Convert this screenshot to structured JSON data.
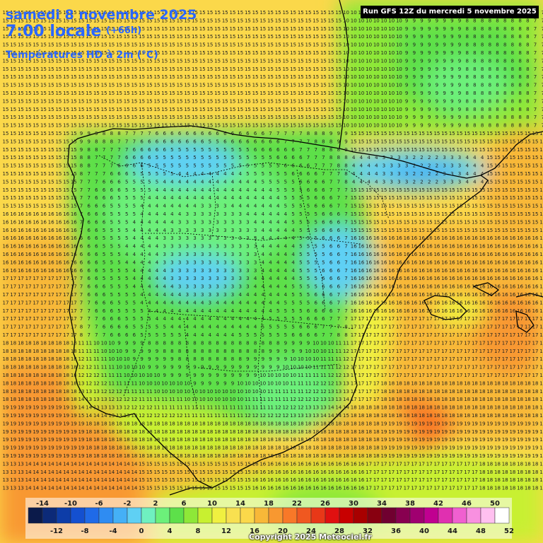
{
  "header": {
    "date": "samedi 8 novembre 2025",
    "time": "7:00 locale",
    "lead": "(+66h)",
    "parameter": "Températures HD à 2m (°C)",
    "run": "Run GFS 12Z du mercredi 5 novembre 2025"
  },
  "footer": {
    "copyright": "Copyright 2025 Meteociel.fr"
  },
  "legend": {
    "top_labels": [
      "-14",
      "-10",
      "-6",
      "-2",
      "2",
      "6",
      "10",
      "14",
      "18",
      "22",
      "26",
      "30",
      "34",
      "38",
      "42",
      "46",
      "50"
    ],
    "bottom_labels": [
      "-12",
      "-8",
      "-4",
      "0",
      "4",
      "8",
      "12",
      "16",
      "20",
      "24",
      "28",
      "32",
      "36",
      "40",
      "44",
      "48",
      "52"
    ],
    "colors": [
      "#0b1a4a",
      "#0c2a78",
      "#0d3da8",
      "#1450d0",
      "#1f6ae8",
      "#2f8cf2",
      "#45b0f6",
      "#5fd0f4",
      "#6ff0c0",
      "#6cf07a",
      "#5de04a",
      "#8ee838",
      "#c8f030",
      "#f0f040",
      "#f8e050",
      "#fbd84a",
      "#f8b838",
      "#f89830",
      "#f87828",
      "#f05820",
      "#e83818",
      "#e01010",
      "#c80000",
      "#a80000",
      "#880010",
      "#700030",
      "#880050",
      "#a00070",
      "#c00090",
      "#e030b0",
      "#f060d0",
      "#f890e0",
      "#ffc0f0",
      "#ffffff"
    ]
  },
  "map_info": {
    "region": "Péninsule Ibérique",
    "unit": "°C",
    "value_colors": {
      "cold": "#45b0f6",
      "cool": "#5de04a",
      "mild": "#c8f030",
      "warm": "#fbd84a",
      "hot": "#f89830"
    }
  }
}
